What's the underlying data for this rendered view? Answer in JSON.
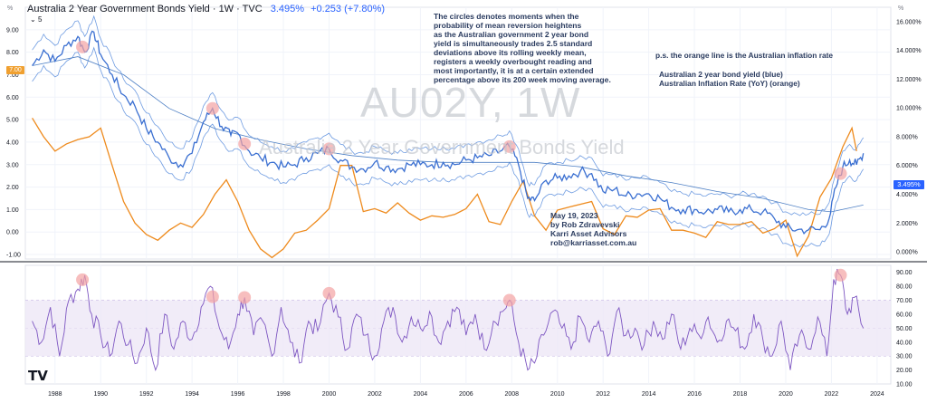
{
  "header": {
    "title": "Australia 2 Year Government Bonds Yield · 1W · TVC",
    "value": "3.495%",
    "change": "+0.253 (+7.80%)",
    "collapse_label": "5"
  },
  "badges": {
    "left": "7.00",
    "right": "3.495%"
  },
  "units": {
    "left": "%",
    "right": "%"
  },
  "watermark": {
    "symbol": "AU02Y, 1W",
    "name": "Australia 2 Year Government Bonds Yield"
  },
  "notes": {
    "main": "The circles denotes moments when the\nprobability of mean reversion heightens\nas the Australian government 2 year bond\nyield is simultaneously trades 2.5 standard\ndeviations above its rolling weekly mean,\nregisters a weekly overbought reading and\nmost importantly, it is at a certain extended\npercentage above its 200 week moving average.",
    "ps": "p.s. the orange line is the Australian inflation rate",
    "legend": "Australian 2 year bond yield (blue)\nAustralian Inflation Rate (YoY) (orange)",
    "author": "May 19, 2023\nby Rob Zdravevski\nKarri Asset Advisors\nrob@karriasset.com.au"
  },
  "logo": "TV",
  "colors": {
    "yield": "#3a6fd1",
    "band": "#4b83d9",
    "ma": "#4d7fc4",
    "inflation": "#ee8a1c",
    "rsi": "#7e57c2",
    "rsi_band": "#ede7f6",
    "circle": "#f4a3a3"
  },
  "chart_data": [
    {
      "type": "line",
      "name": "bond-yield-panel",
      "title": "Australia 2 Year Government Bonds Yield · 1W · TVC",
      "x_range": [
        1986.7,
        2024.6
      ],
      "left_axis": {
        "unit": "%",
        "ylim": [
          -1.2,
          10.0
        ],
        "ticks": [
          "9.00",
          "8.00",
          "7.00",
          "6.00",
          "5.00",
          "4.00",
          "3.00",
          "2.00",
          "1.00",
          "0.00",
          "-1.00"
        ],
        "tick_values": [
          9,
          8,
          7,
          6,
          5,
          4,
          3,
          2,
          1,
          0,
          -1
        ]
      },
      "right_axis": {
        "unit": "%",
        "ylim": [
          -0.5,
          17.0
        ],
        "ticks": [
          "16.000%",
          "14.000%",
          "12.000%",
          "10.000%",
          "8.000%",
          "6.000%",
          "4.000%",
          "2.000%",
          "0.000%"
        ],
        "tick_values": [
          16,
          14,
          12,
          10,
          8,
          6,
          4,
          2,
          0
        ]
      },
      "x_ticks": {
        "labels": [
          "1988",
          "1990",
          "1992",
          "1994",
          "1996",
          "1998",
          "2000",
          "2002",
          "2004",
          "2006",
          "2008",
          "2010",
          "2012",
          "2014",
          "2016",
          "2018",
          "2020",
          "2022",
          "2024"
        ],
        "values": [
          1988,
          1990,
          1992,
          1994,
          1996,
          1998,
          2000,
          2002,
          2004,
          2006,
          2008,
          2010,
          2012,
          2014,
          2016,
          2018,
          2020,
          2022,
          2024
        ]
      },
      "series": [
        {
          "name": "Australian 2 year bond yield (blue)",
          "axis": "left",
          "x": [
            1987.0,
            1987.5,
            1988.0,
            1988.5,
            1989.0,
            1989.3,
            1989.7,
            1990.0,
            1990.5,
            1991.0,
            1991.5,
            1992.0,
            1992.5,
            1993.0,
            1993.5,
            1994.0,
            1994.5,
            1994.9,
            1995.3,
            1995.7,
            1996.0,
            1996.5,
            1997.0,
            1997.5,
            1998.0,
            1998.5,
            1999.0,
            1999.5,
            2000.0,
            2000.5,
            2001.0,
            2001.5,
            2002.0,
            2002.5,
            2003.0,
            2003.5,
            2004.0,
            2004.5,
            2005.0,
            2005.5,
            2006.0,
            2006.5,
            2007.0,
            2007.5,
            2007.9,
            2008.3,
            2008.7,
            2009.0,
            2009.5,
            2010.0,
            2010.5,
            2011.0,
            2011.5,
            2012.0,
            2012.5,
            2013.0,
            2013.5,
            2014.0,
            2014.5,
            2015.0,
            2015.5,
            2016.0,
            2016.5,
            2017.0,
            2017.5,
            2018.0,
            2018.5,
            2019.0,
            2019.5,
            2020.0,
            2020.5,
            2021.0,
            2021.5,
            2021.9,
            2022.2,
            2022.5,
            2022.8,
            2023.1,
            2023.4
          ],
          "y": [
            7.4,
            8.1,
            7.6,
            8.3,
            8.7,
            8.0,
            8.9,
            7.9,
            7.0,
            6.1,
            5.6,
            4.6,
            4.0,
            3.3,
            3.0,
            3.5,
            4.9,
            5.5,
            4.7,
            4.3,
            4.4,
            3.6,
            3.3,
            3.1,
            2.9,
            3.0,
            3.3,
            3.5,
            3.7,
            3.2,
            2.9,
            2.8,
            3.1,
            2.9,
            2.8,
            3.0,
            3.0,
            3.0,
            3.1,
            3.0,
            3.2,
            3.3,
            3.4,
            3.6,
            3.8,
            3.0,
            1.5,
            1.4,
            2.3,
            2.4,
            2.5,
            2.7,
            2.6,
            1.8,
            1.9,
            1.6,
            1.7,
            1.7,
            1.5,
            1.1,
            1.0,
            1.0,
            0.9,
            1.0,
            0.9,
            1.0,
            1.0,
            0.9,
            0.6,
            0.2,
            0.1,
            0.1,
            0.1,
            0.6,
            2.0,
            2.9,
            3.2,
            3.0,
            3.5
          ]
        },
        {
          "name": "Australian Inflation Rate (YoY) (orange)",
          "axis": "right",
          "x": [
            1987.0,
            1987.5,
            1988.0,
            1988.5,
            1989.0,
            1989.5,
            1990.0,
            1990.5,
            1991.0,
            1991.5,
            1992.0,
            1992.5,
            1993.0,
            1993.5,
            1994.0,
            1994.5,
            1995.0,
            1995.5,
            1996.0,
            1996.5,
            1997.0,
            1997.5,
            1998.0,
            1998.5,
            1999.0,
            1999.5,
            2000.0,
            2000.5,
            2001.0,
            2001.5,
            2002.0,
            2002.5,
            2003.0,
            2003.5,
            2004.0,
            2004.5,
            2005.0,
            2005.5,
            2006.0,
            2006.5,
            2007.0,
            2007.5,
            2008.0,
            2008.5,
            2009.0,
            2009.5,
            2010.0,
            2010.5,
            2011.0,
            2011.5,
            2012.0,
            2012.5,
            2013.0,
            2013.5,
            2014.0,
            2014.5,
            2015.0,
            2015.5,
            2016.0,
            2016.5,
            2017.0,
            2017.5,
            2018.0,
            2018.5,
            2019.0,
            2019.5,
            2020.0,
            2020.5,
            2021.0,
            2021.5,
            2022.0,
            2022.5,
            2022.9,
            2023.1
          ],
          "y": [
            9.3,
            8.0,
            7.0,
            7.5,
            7.8,
            8.0,
            8.6,
            6.0,
            3.5,
            2.0,
            1.2,
            0.8,
            1.5,
            2.0,
            1.7,
            2.6,
            4.0,
            5.0,
            3.5,
            1.5,
            0.2,
            -0.4,
            0.2,
            1.3,
            1.5,
            2.2,
            3.0,
            6.0,
            6.0,
            2.8,
            3.0,
            2.7,
            3.4,
            2.7,
            2.2,
            2.5,
            2.4,
            2.6,
            3.0,
            4.0,
            2.1,
            1.9,
            3.5,
            4.9,
            2.5,
            1.5,
            2.9,
            3.1,
            3.3,
            3.5,
            1.6,
            1.2,
            2.5,
            2.4,
            2.9,
            3.0,
            1.5,
            1.5,
            1.3,
            1.0,
            2.1,
            1.9,
            1.9,
            2.1,
            1.3,
            1.6,
            2.2,
            -0.3,
            1.1,
            3.8,
            5.1,
            7.3,
            8.6,
            7.0
          ]
        },
        {
          "name": "",
          "axis": "left",
          "x": [
            1987.0,
            1989.0,
            1991.0,
            1993.0,
            1995.0,
            1997.0,
            1999.0,
            2001.0,
            2003.0,
            2005.0,
            2007.0,
            2009.0,
            2011.0,
            2013.0,
            2015.0,
            2017.0,
            2019.0,
            2021.0,
            2022.0,
            2023.4
          ],
          "y": [
            7.4,
            7.8,
            7.0,
            5.5,
            4.6,
            4.1,
            3.7,
            3.4,
            3.2,
            3.1,
            3.1,
            3.1,
            2.9,
            2.5,
            2.2,
            1.8,
            1.5,
            1.0,
            0.9,
            1.2
          ]
        }
      ],
      "annotations": {
        "circles_x": [
          1989.2,
          1994.9,
          1996.3,
          2000.0,
          2007.9,
          2022.4
        ]
      }
    },
    {
      "type": "line",
      "name": "rsi-panel",
      "ylim": [
        10,
        95
      ],
      "band": [
        30,
        70
      ],
      "ticks": [
        "90.00",
        "80.00",
        "70.00",
        "60.00",
        "50.00",
        "40.00",
        "30.00",
        "20.00",
        "10.00"
      ],
      "tick_values": [
        90,
        80,
        70,
        60,
        50,
        40,
        30,
        20,
        10
      ],
      "series": [
        {
          "name": "",
          "x": [
            1987.0,
            1987.4,
            1987.8,
            1988.2,
            1988.6,
            1989.0,
            1989.3,
            1989.6,
            1990.0,
            1990.4,
            1990.8,
            1991.2,
            1991.6,
            1992.0,
            1992.4,
            1992.8,
            1993.2,
            1993.6,
            1994.0,
            1994.4,
            1994.8,
            1995.2,
            1995.6,
            1996.0,
            1996.3,
            1996.7,
            1997.1,
            1997.5,
            1997.9,
            1998.3,
            1998.7,
            1999.1,
            1999.5,
            2000.0,
            2000.4,
            2000.8,
            2001.2,
            2001.6,
            2002.0,
            2002.4,
            2002.8,
            2003.2,
            2003.6,
            2004.0,
            2004.4,
            2004.8,
            2005.2,
            2005.6,
            2006.0,
            2006.4,
            2006.8,
            2007.2,
            2007.6,
            2007.9,
            2008.3,
            2008.7,
            2009.0,
            2009.4,
            2009.8,
            2010.2,
            2010.6,
            2011.0,
            2011.4,
            2011.8,
            2012.2,
            2012.6,
            2013.0,
            2013.4,
            2013.8,
            2014.2,
            2014.6,
            2015.0,
            2015.4,
            2015.8,
            2016.2,
            2016.6,
            2017.0,
            2017.4,
            2017.8,
            2018.2,
            2018.6,
            2019.0,
            2019.4,
            2019.8,
            2020.2,
            2020.6,
            2021.0,
            2021.4,
            2021.8,
            2022.1,
            2022.4,
            2022.7,
            2023.0,
            2023.4
          ],
          "y": [
            55,
            40,
            65,
            30,
            70,
            78,
            88,
            60,
            45,
            30,
            55,
            38,
            25,
            50,
            20,
            60,
            35,
            55,
            42,
            65,
            80,
            50,
            35,
            60,
            72,
            45,
            55,
            30,
            65,
            40,
            25,
            55,
            48,
            75,
            58,
            35,
            60,
            45,
            30,
            55,
            65,
            40,
            58,
            50,
            62,
            40,
            55,
            65,
            45,
            60,
            35,
            55,
            62,
            70,
            40,
            20,
            25,
            45,
            62,
            50,
            35,
            58,
            40,
            55,
            30,
            62,
            45,
            50,
            38,
            55,
            42,
            60,
            35,
            50,
            45,
            58,
            40,
            55,
            48,
            35,
            60,
            42,
            30,
            55,
            20,
            45,
            35,
            58,
            30,
            85,
            88,
            60,
            72,
            50
          ]
        }
      ],
      "annotations": {
        "circles_x": [
          1989.2,
          1994.9,
          1996.3,
          2000.0,
          2007.9,
          2022.4
        ]
      }
    }
  ]
}
